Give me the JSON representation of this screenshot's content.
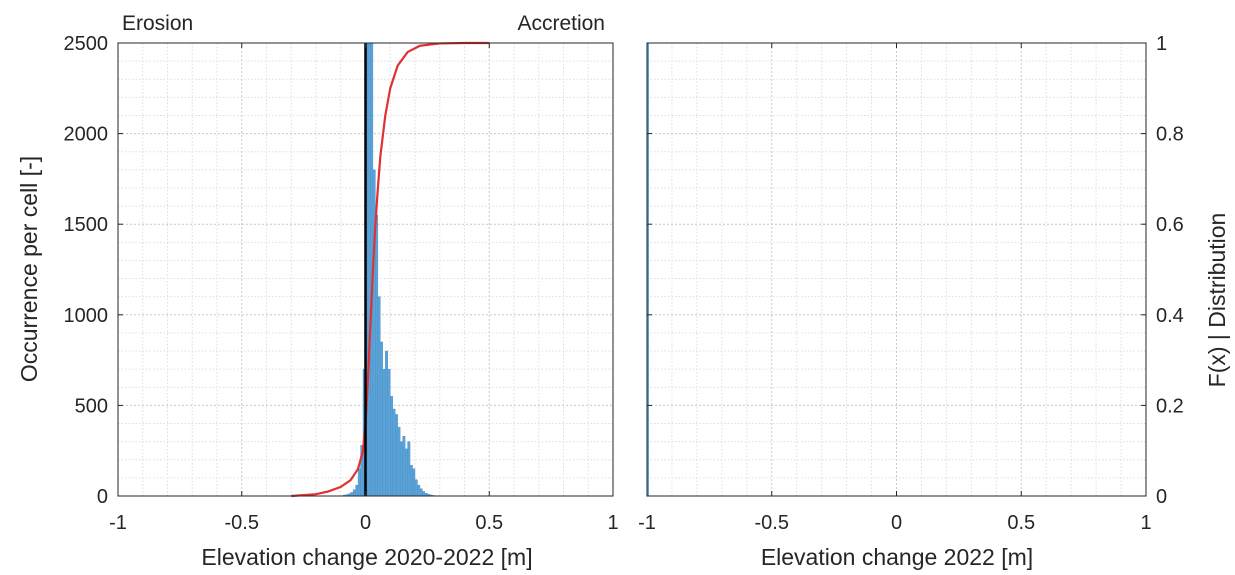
{
  "chart_data": [
    {
      "type": "bar",
      "panel": "left",
      "corner_labels": {
        "left": "Erosion",
        "right": "Accretion"
      },
      "xlabel": "Elevation change 2020-2022 [m]",
      "ylabel": "Occurrence per cell [-]",
      "xlim": [
        -1,
        1
      ],
      "ylim": [
        0,
        2500
      ],
      "xticks": [
        -1,
        -0.5,
        0,
        0.5,
        1
      ],
      "xtick_labels": [
        "-1",
        "-0.5",
        "0",
        "0.5",
        "1"
      ],
      "yticks": [
        0,
        500,
        1000,
        1500,
        2000,
        2500
      ],
      "ytick_labels": [
        "0",
        "500",
        "1000",
        "1500",
        "2000",
        "2500"
      ],
      "grid": true,
      "minor_grid": true,
      "bin_width": 0.01,
      "histogram": {
        "bin_centers": [
          -0.085,
          -0.075,
          -0.065,
          -0.055,
          -0.045,
          -0.035,
          -0.025,
          -0.015,
          -0.005,
          0.005,
          0.015,
          0.025,
          0.035,
          0.045,
          0.055,
          0.065,
          0.075,
          0.085,
          0.095,
          0.105,
          0.115,
          0.125,
          0.135,
          0.145,
          0.155,
          0.165,
          0.175,
          0.185,
          0.195,
          0.205,
          0.215,
          0.225,
          0.235,
          0.245,
          0.255,
          0.265,
          0.275
        ],
        "counts": [
          5,
          8,
          12,
          20,
          35,
          60,
          150,
          280,
          700,
          2500,
          2500,
          2500,
          1800,
          1550,
          1100,
          850,
          700,
          800,
          700,
          550,
          480,
          450,
          380,
          300,
          330,
          260,
          300,
          170,
          150,
          90,
          60,
          40,
          25,
          15,
          10,
          6,
          3
        ]
      },
      "cdf": {
        "axis": "right",
        "color": "#e03030",
        "x": [
          -0.3,
          -0.2,
          -0.15,
          -0.1,
          -0.06,
          -0.03,
          -0.01,
          0,
          0.01,
          0.02,
          0.03,
          0.04,
          0.05,
          0.06,
          0.08,
          0.1,
          0.13,
          0.17,
          0.22,
          0.3,
          0.4,
          0.5
        ],
        "y": [
          0.0,
          0.004,
          0.01,
          0.02,
          0.035,
          0.06,
          0.1,
          0.16,
          0.26,
          0.38,
          0.5,
          0.6,
          0.68,
          0.75,
          0.84,
          0.9,
          0.95,
          0.98,
          0.994,
          0.999,
          1.0,
          1.0
        ]
      },
      "vline_x": 0,
      "bar_color": "#5aa3d8"
    },
    {
      "type": "bar",
      "panel": "right",
      "xlabel": "Elevation change 2022 [m]",
      "ylabel_right": "F(x) | Distribution",
      "xlim": [
        -1,
        1
      ],
      "ylim_right": [
        0,
        1
      ],
      "xticks": [
        -1,
        -0.5,
        0,
        0.5,
        1
      ],
      "xtick_labels": [
        "-1",
        "-0.5",
        "0",
        "0.5",
        "1"
      ],
      "yticks_right": [
        0,
        0.2,
        0.4,
        0.6,
        0.8,
        1
      ],
      "ytick_labels_right": [
        "0",
        "0.2",
        "0.4",
        "0.6",
        "0.8",
        "1"
      ],
      "grid": true,
      "minor_grid": true,
      "empty_series_marker_x": -1,
      "marker_color": "#5aa3d8"
    }
  ]
}
